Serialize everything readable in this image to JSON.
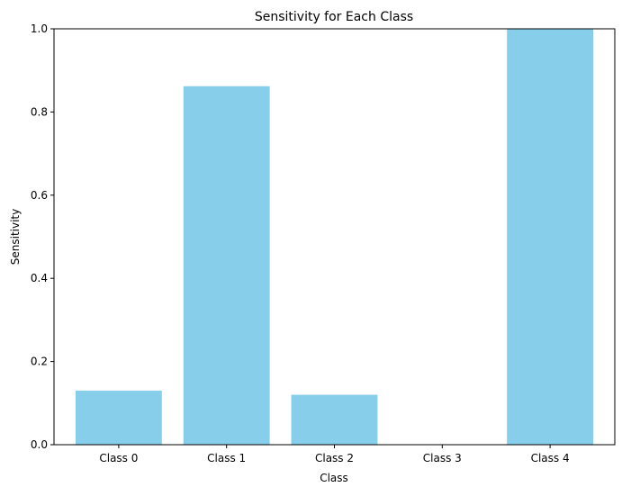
{
  "chart_data": {
    "type": "bar",
    "title": "Sensitivity for Each Class",
    "xlabel": "Class",
    "ylabel": "Sensitivity",
    "categories": [
      "Class 0",
      "Class 1",
      "Class 2",
      "Class 3",
      "Class 4"
    ],
    "values": [
      0.13,
      0.862,
      0.12,
      0.0,
      1.0
    ],
    "ylim": [
      0,
      1.0
    ],
    "yticks": [
      "0.0",
      "0.2",
      "0.4",
      "0.6",
      "0.8",
      "1.0"
    ],
    "grid": false,
    "bar_color": "#87ceeb"
  }
}
